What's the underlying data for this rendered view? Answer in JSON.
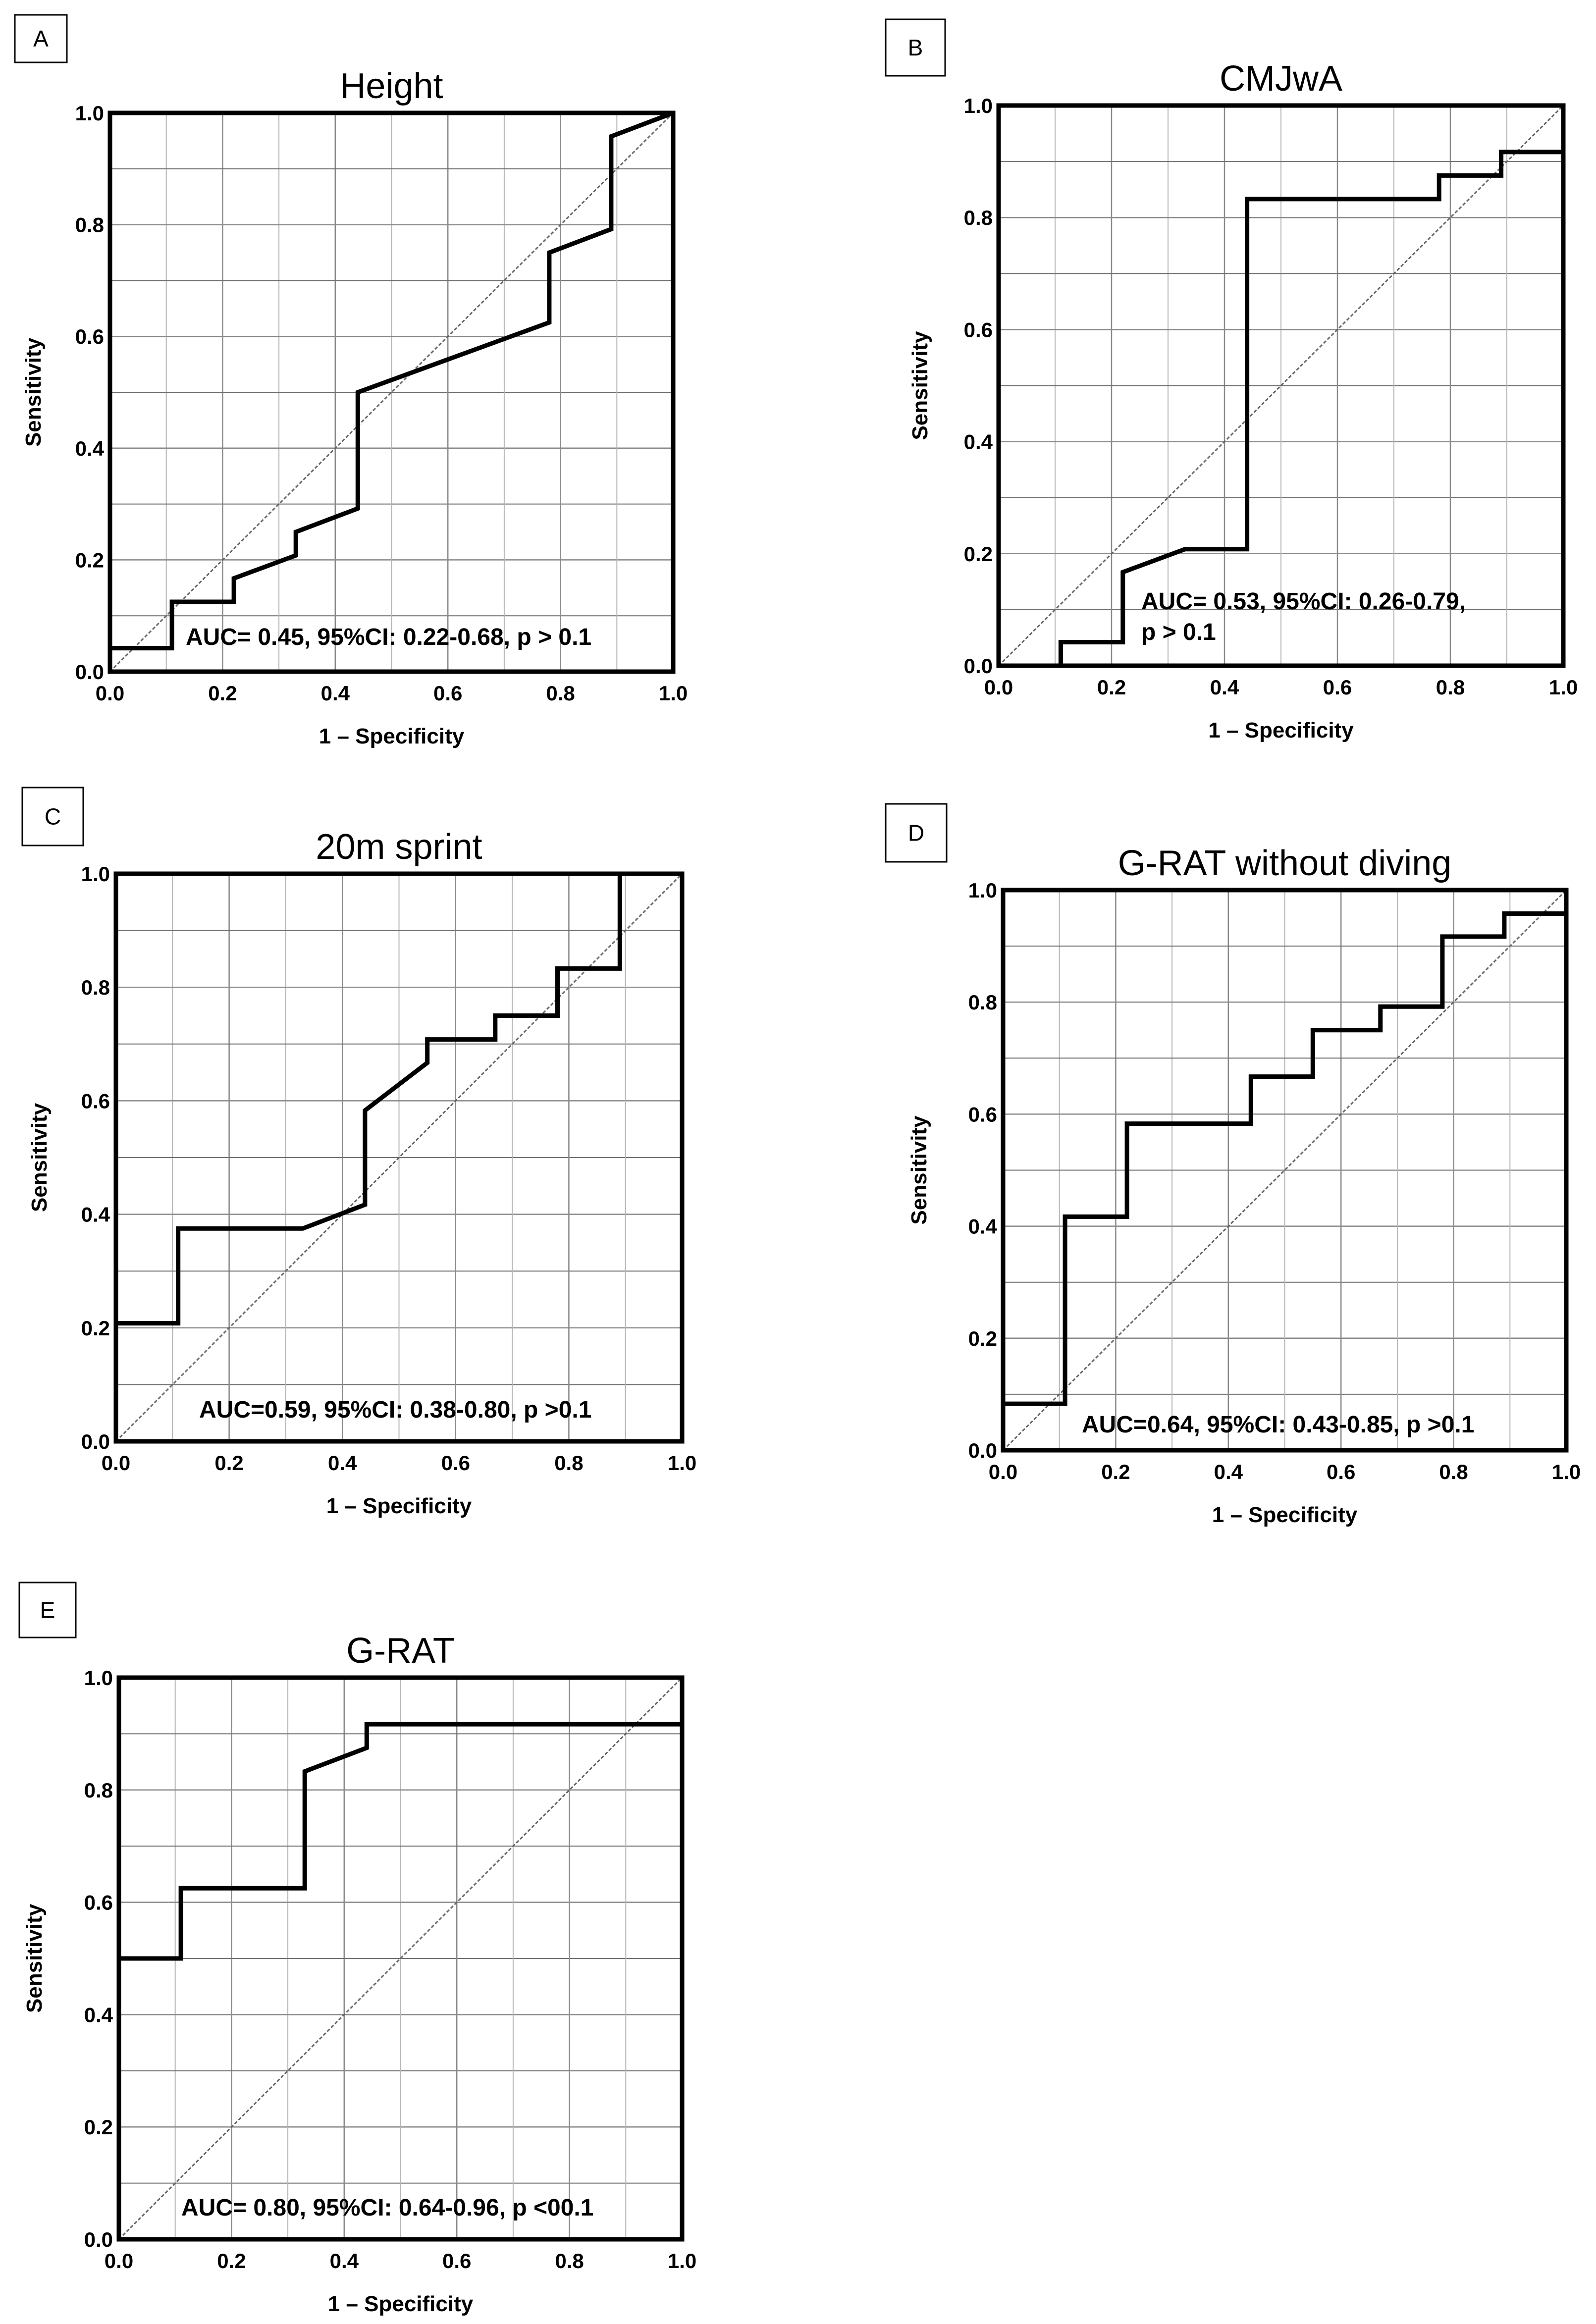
{
  "chart_data": [
    {
      "type": "line",
      "panel": "A",
      "title": "Height",
      "xlabel": "1 – Specificity",
      "ylabel": "Sensitivity",
      "xlim": [
        0,
        1
      ],
      "ylim": [
        0,
        1
      ],
      "ticks": [
        "0.0",
        "0.2",
        "0.4",
        "0.6",
        "0.8",
        "1.0"
      ],
      "grid": true,
      "annotation": [
        "AUC= 0.45, 95%CI: 0.22-0.68, p > 0.1"
      ],
      "series": [
        {
          "name": "ROC",
          "x": [
            0,
            0.11,
            0.11,
            0.22,
            0.22,
            0.33,
            0.33,
            0.44,
            0.44,
            0.78,
            0.78,
            0.89,
            0.89,
            1.0
          ],
          "y": [
            0.042,
            0.042,
            0.125,
            0.125,
            0.167,
            0.208,
            0.25,
            0.292,
            0.5,
            0.625,
            0.75,
            0.792,
            0.958,
            1.0
          ]
        },
        {
          "name": "Reference",
          "x": [
            0,
            1
          ],
          "y": [
            0,
            1
          ]
        }
      ]
    },
    {
      "type": "line",
      "panel": "B",
      "title": "CMJwA",
      "xlabel": "1 – Specificity",
      "ylabel": "Sensitivity",
      "xlim": [
        0,
        1
      ],
      "ylim": [
        0,
        1
      ],
      "ticks": [
        "0.0",
        "0.2",
        "0.4",
        "0.6",
        "0.8",
        "1.0"
      ],
      "grid": true,
      "annotation": [
        "AUC= 0.53, 95%CI: 0.26-0.79,",
        "p > 0.1"
      ],
      "series": [
        {
          "name": "ROC",
          "x": [
            0.11,
            0.11,
            0.22,
            0.22,
            0.33,
            0.44,
            0.44,
            0.78,
            0.78,
            0.89,
            0.89,
            1.0
          ],
          "y": [
            0,
            0.042,
            0.042,
            0.167,
            0.208,
            0.208,
            0.833,
            0.833,
            0.875,
            0.875,
            0.917,
            0.917
          ]
        },
        {
          "name": "Reference",
          "x": [
            0,
            1
          ],
          "y": [
            0,
            1
          ]
        }
      ]
    },
    {
      "type": "line",
      "panel": "C",
      "title": "20m sprint",
      "xlabel": "1 – Specificity",
      "ylabel": "Sensitivity",
      "xlim": [
        0,
        1
      ],
      "ylim": [
        0,
        1
      ],
      "ticks": [
        "0.0",
        "0.2",
        "0.4",
        "0.6",
        "0.8",
        "1.0"
      ],
      "grid": true,
      "annotation": [
        "AUC=0.59, 95%CI: 0.38-0.80, p >0.1"
      ],
      "series": [
        {
          "name": "ROC",
          "x": [
            0,
            0.11,
            0.11,
            0.33,
            0.44,
            0.44,
            0.55,
            0.55,
            0.67,
            0.67,
            0.78,
            0.78,
            0.89,
            0.89
          ],
          "y": [
            0.208,
            0.208,
            0.375,
            0.375,
            0.417,
            0.583,
            0.667,
            0.708,
            0.708,
            0.75,
            0.75,
            0.833,
            0.833,
            1.0
          ]
        },
        {
          "name": "Reference",
          "x": [
            0,
            1
          ],
          "y": [
            0,
            1
          ]
        }
      ]
    },
    {
      "type": "line",
      "panel": "D",
      "title": "G-RAT without diving",
      "xlabel": "1 – Specificity",
      "ylabel": "Sensitivity",
      "xlim": [
        0,
        1
      ],
      "ylim": [
        0,
        1
      ],
      "ticks": [
        "0.0",
        "0.2",
        "0.4",
        "0.6",
        "0.8",
        "1.0"
      ],
      "grid": true,
      "annotation": [
        "AUC=0.64, 95%CI: 0.43-0.85, p >0.1"
      ],
      "series": [
        {
          "name": "ROC",
          "x": [
            0,
            0.11,
            0.11,
            0.22,
            0.22,
            0.44,
            0.44,
            0.55,
            0.55,
            0.67,
            0.67,
            0.78,
            0.78,
            0.89,
            0.89,
            1.0
          ],
          "y": [
            0.083,
            0.083,
            0.417,
            0.417,
            0.583,
            0.583,
            0.667,
            0.667,
            0.75,
            0.75,
            0.792,
            0.792,
            0.917,
            0.917,
            0.958,
            0.958
          ]
        },
        {
          "name": "Reference",
          "x": [
            0,
            1
          ],
          "y": [
            0,
            1
          ]
        }
      ]
    },
    {
      "type": "line",
      "panel": "E",
      "title": "G-RAT",
      "xlabel": "1 – Specificity",
      "ylabel": "Sensitivity",
      "xlim": [
        0,
        1
      ],
      "ylim": [
        0,
        1
      ],
      "ticks": [
        "0.0",
        "0.2",
        "0.4",
        "0.6",
        "0.8",
        "1.0"
      ],
      "grid": true,
      "annotation": [
        "AUC= 0.80, 95%CI: 0.64-0.96, p <00.1"
      ],
      "series": [
        {
          "name": "ROC",
          "x": [
            0,
            0.11,
            0.11,
            0.33,
            0.33,
            0.44,
            0.44,
            1.0
          ],
          "y": [
            0.5,
            0.5,
            0.625,
            0.625,
            0.833,
            0.875,
            0.917,
            0.917
          ]
        },
        {
          "name": "Reference",
          "x": [
            0,
            1
          ],
          "y": [
            0,
            1
          ]
        }
      ]
    }
  ]
}
